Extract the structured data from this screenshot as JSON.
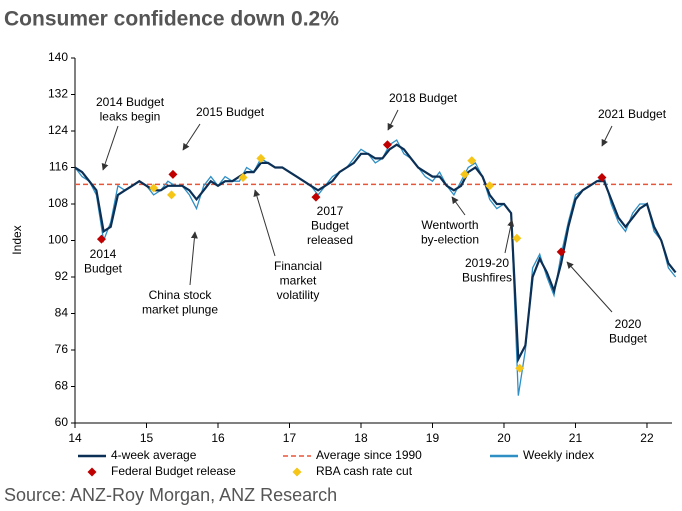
{
  "chart_data": {
    "type": "line",
    "title": "Consumer confidence down 0.2%",
    "y_label": "Index",
    "source": "Source: ANZ-Roy Morgan, ANZ Research",
    "x": [
      14.0,
      14.1,
      14.2,
      14.3,
      14.4,
      14.5,
      14.6,
      14.7,
      14.8,
      14.9,
      15.0,
      15.1,
      15.2,
      15.3,
      15.4,
      15.5,
      15.6,
      15.7,
      15.8,
      15.9,
      16.0,
      16.1,
      16.2,
      16.3,
      16.4,
      16.5,
      16.6,
      16.7,
      16.8,
      16.9,
      17.0,
      17.1,
      17.2,
      17.3,
      17.4,
      17.5,
      17.6,
      17.7,
      17.8,
      17.9,
      18.0,
      18.1,
      18.2,
      18.3,
      18.4,
      18.5,
      18.6,
      18.7,
      18.8,
      18.9,
      19.0,
      19.1,
      19.2,
      19.3,
      19.4,
      19.5,
      19.6,
      19.7,
      19.8,
      19.9,
      20.0,
      20.1,
      20.2,
      20.3,
      20.4,
      20.5,
      20.6,
      20.7,
      20.8,
      20.9,
      21.0,
      21.1,
      21.2,
      21.3,
      21.4,
      21.5,
      21.6,
      21.7,
      21.8,
      21.9,
      22.0,
      22.1,
      22.2,
      22.3,
      22.4
    ],
    "xlim": [
      14,
      22.35
    ],
    "xticks": [
      14,
      15,
      16,
      17,
      18,
      19,
      20,
      21,
      22
    ],
    "ylim": [
      60,
      140
    ],
    "yticks": [
      60,
      68,
      76,
      84,
      92,
      100,
      108,
      116,
      124,
      132,
      140
    ],
    "series": [
      {
        "name": "4-week average",
        "color": "#0b2f55",
        "values": [
          116,
          115,
          113,
          111,
          102,
          103,
          110,
          111,
          112,
          113,
          112,
          111,
          111,
          112,
          112,
          112,
          111,
          109,
          111,
          113,
          112,
          113,
          113,
          114,
          115,
          115,
          117,
          117,
          116,
          116,
          115,
          114,
          113,
          112,
          111,
          112,
          113,
          115,
          116,
          117,
          119,
          119,
          118,
          118,
          120,
          121,
          120,
          118,
          116,
          115,
          114,
          114,
          112,
          111,
          112,
          115,
          116,
          114,
          110,
          108,
          108,
          106,
          74,
          77,
          92,
          96,
          93,
          89,
          95,
          103,
          109,
          111,
          112,
          113,
          113,
          109,
          105,
          103,
          105,
          107,
          108,
          103,
          100,
          95,
          93
        ]
      },
      {
        "name": "Weekly index",
        "color": "#2f8fc4",
        "values": [
          116,
          114,
          113,
          110,
          100,
          104,
          112,
          111,
          112,
          113,
          112,
          110,
          111,
          113,
          112,
          112,
          110,
          107,
          112,
          114,
          112,
          114,
          113,
          113,
          116,
          115,
          118,
          117,
          116,
          116,
          115,
          114,
          113,
          112,
          110,
          112,
          114,
          115,
          116,
          118,
          120,
          119,
          117,
          118,
          121,
          122,
          119,
          118,
          116,
          114,
          113,
          115,
          112,
          110,
          113,
          116,
          117,
          114,
          109,
          107,
          108,
          106,
          66,
          76,
          94,
          97,
          92,
          88,
          97,
          104,
          110,
          111,
          112,
          113,
          114,
          108,
          104,
          102,
          106,
          108,
          108,
          102,
          100,
          94,
          92
        ]
      }
    ],
    "reference_line": {
      "name": "Average since 1990",
      "value": 112.3,
      "color": "#e8563a"
    },
    "markers": [
      {
        "name": "Federal Budget release",
        "color": "#c00000",
        "x": [
          14.37,
          15.37,
          17.37,
          18.37,
          20.8,
          21.37
        ],
        "y": [
          100.3,
          114.5,
          109.5,
          121,
          97.5,
          113.8
        ]
      },
      {
        "name": "RBA cash rate cut",
        "color": "#f5c518",
        "x": [
          15.1,
          15.35,
          16.35,
          16.6,
          19.45,
          19.55,
          19.8,
          20.18,
          20.22
        ],
        "y": [
          111.5,
          110,
          113.8,
          118,
          114.5,
          117.5,
          112,
          100.5,
          72
        ]
      }
    ],
    "annotations": [
      {
        "text": [
          "2014 Budget",
          "leaks begin"
        ]
      },
      {
        "text": [
          "2015 Budget"
        ]
      },
      {
        "text": [
          "2018 Budget"
        ]
      },
      {
        "text": [
          "2021 Budget"
        ]
      },
      {
        "text": [
          "2014",
          "Budget"
        ]
      },
      {
        "text": [
          "China stock",
          "market plunge"
        ]
      },
      {
        "text": [
          "Financial",
          "market",
          "volatility"
        ]
      },
      {
        "text": [
          "2017",
          "Budget",
          "released"
        ]
      },
      {
        "text": [
          "Wentworth",
          "by-election"
        ]
      },
      {
        "text": [
          "2019-20",
          "Bushfires"
        ]
      },
      {
        "text": [
          "2020",
          "Budget"
        ]
      }
    ]
  }
}
